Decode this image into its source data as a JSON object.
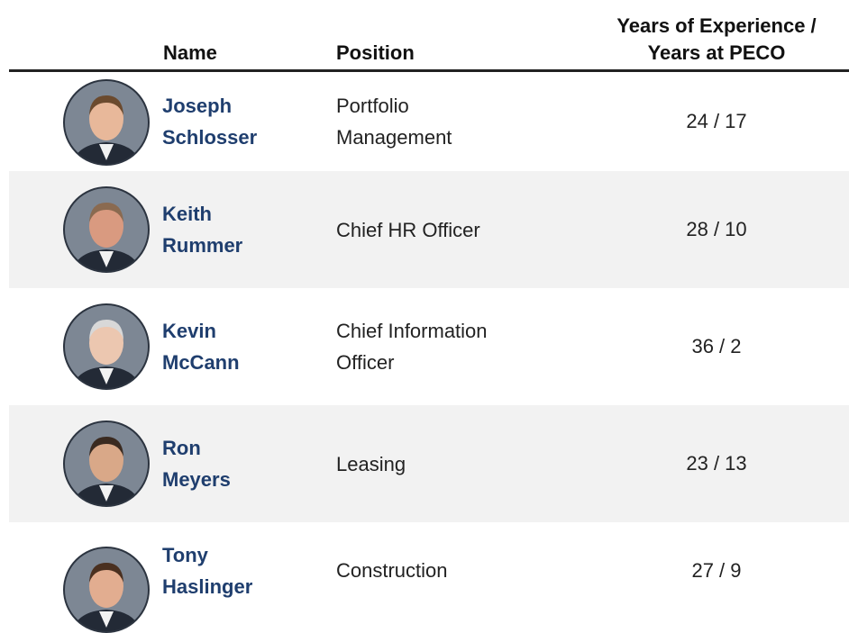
{
  "table": {
    "headers": [
      "Name",
      "Position",
      "Years of Experience / Years at PECO"
    ],
    "rows": [
      [
        "Joseph Schlosser",
        "Portfolio Management",
        "24 / 17"
      ],
      [
        "Keith Rummer",
        "Chief HR Officer",
        "28 / 10"
      ],
      [
        "Kevin McCann",
        "Chief Information Officer",
        "36 / 2"
      ],
      [
        "Ron Meyers",
        "Leasing",
        "23 / 13"
      ],
      [
        "Tony Haslinger",
        "Construction",
        "27 / 9"
      ]
    ]
  }
}
